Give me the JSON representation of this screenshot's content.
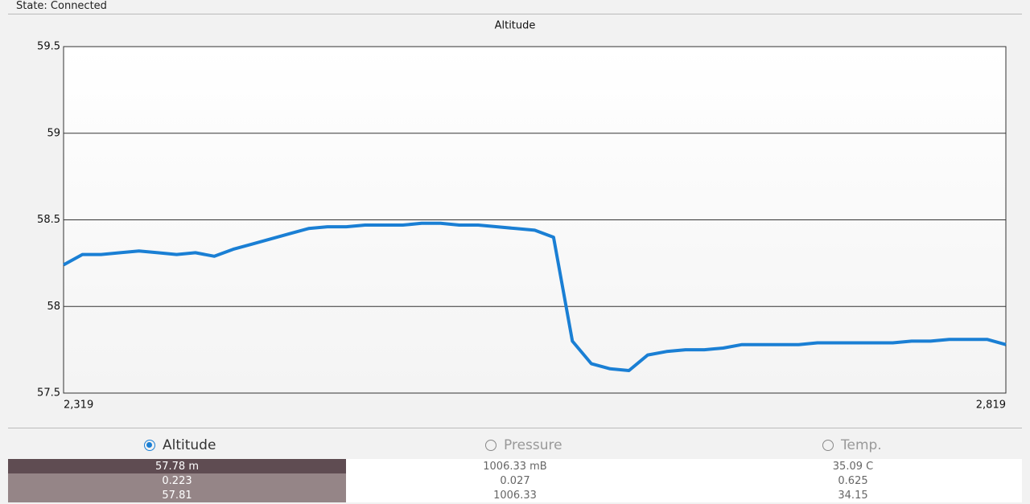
{
  "status": "State: Connected",
  "chart_data": {
    "type": "line",
    "title": "Altitude",
    "color": "#1a7fd4",
    "grid": true,
    "x": [
      2319,
      2329,
      2339,
      2349,
      2359,
      2369,
      2379,
      2389,
      2399,
      2409,
      2419,
      2429,
      2439,
      2449,
      2459,
      2469,
      2479,
      2489,
      2499,
      2509,
      2519,
      2529,
      2539,
      2549,
      2559,
      2569,
      2579,
      2584,
      2589,
      2599,
      2609,
      2619,
      2629,
      2639,
      2649,
      2659,
      2669,
      2679,
      2689,
      2699,
      2709,
      2719,
      2729,
      2739,
      2749,
      2759,
      2769,
      2779,
      2789,
      2799,
      2809,
      2819
    ],
    "values": [
      58.24,
      58.3,
      58.3,
      58.31,
      58.32,
      58.31,
      58.3,
      58.31,
      58.29,
      58.33,
      58.36,
      58.39,
      58.42,
      58.45,
      58.46,
      58.46,
      58.47,
      58.47,
      58.47,
      58.48,
      58.48,
      58.47,
      58.47,
      58.46,
      58.45,
      58.44,
      58.4,
      58.1,
      57.8,
      57.67,
      57.64,
      57.63,
      57.72,
      57.74,
      57.75,
      57.75,
      57.76,
      57.78,
      57.78,
      57.78,
      57.78,
      57.79,
      57.79,
      57.79,
      57.79,
      57.79,
      57.8,
      57.8,
      57.81,
      57.81,
      57.81,
      57.78
    ],
    "xlim": [
      2319,
      2819
    ],
    "xticks": [
      {
        "value": 2319,
        "label": "2,319"
      },
      {
        "value": 2819,
        "label": "2,819"
      }
    ],
    "ylim": [
      57.5,
      59.5
    ],
    "yticks": [
      57.5,
      58,
      58.5,
      59,
      59.5
    ]
  },
  "tabs": [
    {
      "label": "Altitude",
      "selected": true
    },
    {
      "label": "Pressure",
      "selected": false
    },
    {
      "label": "Temp.",
      "selected": false
    }
  ],
  "table": {
    "rows": [
      [
        "57.78 m",
        "1006.33 mB",
        "35.09 C"
      ],
      [
        "0.223",
        "0.027",
        "0.625"
      ],
      [
        "57.81",
        "1006.33",
        "34.15"
      ]
    ]
  }
}
